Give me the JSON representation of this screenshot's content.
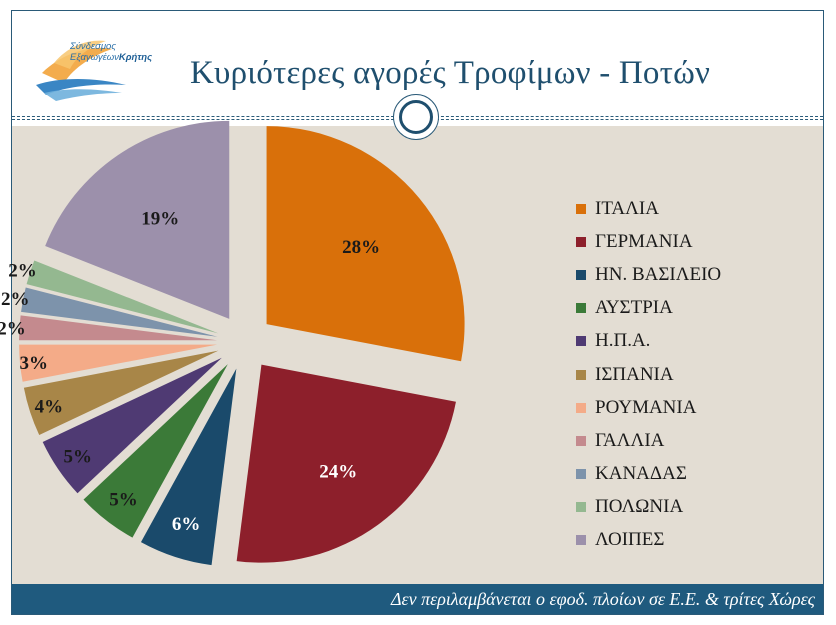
{
  "header": {
    "title": "Κυριότερες αγορές Τροφίμων - Ποτών",
    "logo_line1": "Σύνδεσμος",
    "logo_line2a": "Εξαγωγέων",
    "logo_line2b": "Κρήτης"
  },
  "footer": {
    "note": "Δεν περιλαμβάνεται ο εφοδ. πλοίων σε Ε.Ε. & τρίτες Χώρες"
  },
  "chart_data": {
    "type": "pie",
    "title": "",
    "categories": [
      "ΙΤΑΛΙΑ",
      "ΓΕΡΜΑΝΙΑ",
      "ΗΝ. ΒΑΣΙΛΕΙΟ",
      "ΑΥΣΤΡΙΑ",
      "Η.Π.Α.",
      "ΙΣΠΑΝΙΑ",
      "ΡΟΥΜΑΝΙΑ",
      "ΓΑΛΛΙΑ",
      "ΚΑΝΑΔΑΣ",
      "ΠΟΛΩΝΙΑ",
      "ΛΟΙΠΕΣ"
    ],
    "values": [
      28,
      24,
      6,
      5,
      5,
      4,
      3,
      2,
      2,
      2,
      19
    ],
    "labels": [
      "28%",
      "24%",
      "6%",
      "5%",
      "5%",
      "4%",
      "3%",
      "2%",
      "2%",
      "2%",
      "19%"
    ],
    "colors": [
      "#d9700a",
      "#8d1f2b",
      "#1a4a6b",
      "#3b7a38",
      "#4f3a73",
      "#a88648",
      "#f4ab88",
      "#c48a8e",
      "#7d93ab",
      "#94b890",
      "#9c90ab"
    ],
    "label_colors": [
      "#1a1a1a",
      "#ffffff",
      "#ffffff",
      "#1a1a1a",
      "#1a1a1a",
      "#1a1a1a",
      "#1a1a1a",
      "#1a1a1a",
      "#1a1a1a",
      "#1a1a1a",
      "#1a1a1a"
    ],
    "legend_position": "right",
    "exploded": true
  }
}
